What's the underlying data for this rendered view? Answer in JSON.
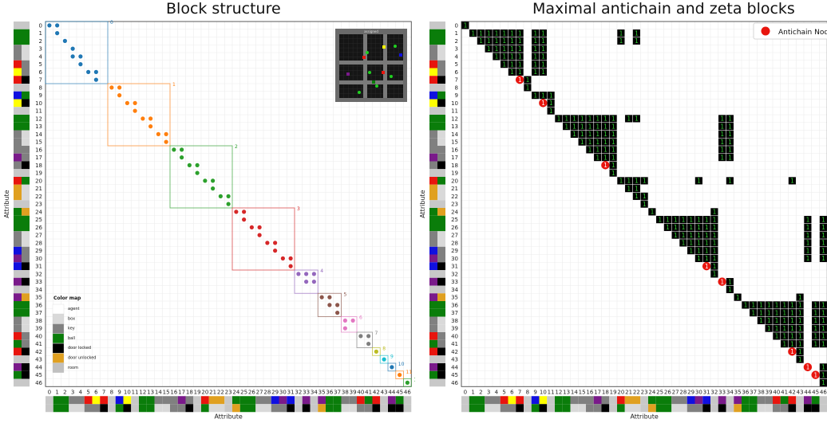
{
  "titles": {
    "left": "Block structure",
    "right": "Maximal antichain and zeta blocks"
  },
  "axis_label": "Attribute",
  "legend": {
    "label": "Antichain Node",
    "color": "#e8150e"
  },
  "minimap_caption": "assigned",
  "color_map": {
    "title": "Color map",
    "items": [
      {
        "label": "agent",
        "color": "#ffffff"
      },
      {
        "label": "box",
        "color": "#d9d9d9"
      },
      {
        "label": "key",
        "color": "#808080"
      },
      {
        "label": "ball",
        "color": "#0a7d0a"
      },
      {
        "label": "door locked",
        "color": "#000000"
      },
      {
        "label": "door unlocked",
        "color": "#e0a020"
      },
      {
        "label": "room",
        "color": "#c0c0c0"
      }
    ]
  },
  "strip_rows": [
    [
      "#c8c8c8",
      "#c8c8c8"
    ],
    [
      "#0a7d0a",
      "#0a7d0a"
    ],
    [
      "#0a7d0a",
      "#0a7d0a"
    ],
    [
      "#808080",
      "#d9d9d9"
    ],
    [
      "#808080",
      "#d9d9d9"
    ],
    [
      "#e8150e",
      "#808080"
    ],
    [
      "#ffff00",
      "#808080"
    ],
    [
      "#e8150e",
      "#000000"
    ],
    [
      "#c8c8c8",
      "#c8c8c8"
    ],
    [
      "#1010e0",
      "#0a7d0a"
    ],
    [
      "#ffff00",
      "#000000"
    ],
    [
      "#c8c8c8",
      "#c8c8c8"
    ],
    [
      "#0a7d0a",
      "#0a7d0a"
    ],
    [
      "#0a7d0a",
      "#0a7d0a"
    ],
    [
      "#808080",
      "#d9d9d9"
    ],
    [
      "#808080",
      "#d9d9d9"
    ],
    [
      "#808080",
      "#808080"
    ],
    [
      "#7a1a8a",
      "#808080"
    ],
    [
      "#808080",
      "#000000"
    ],
    [
      "#c8c8c8",
      "#c8c8c8"
    ],
    [
      "#e8150e",
      "#0a7d0a"
    ],
    [
      "#e0a020",
      "#d9d9d9"
    ],
    [
      "#e0a020",
      "#d9d9d9"
    ],
    [
      "#c8c8c8",
      "#c8c8c8"
    ],
    [
      "#0a7d0a",
      "#e0a020"
    ],
    [
      "#0a7d0a",
      "#0a7d0a"
    ],
    [
      "#0a7d0a",
      "#0a7d0a"
    ],
    [
      "#808080",
      "#d9d9d9"
    ],
    [
      "#808080",
      "#d9d9d9"
    ],
    [
      "#1010e0",
      "#808080"
    ],
    [
      "#7a1a8a",
      "#808080"
    ],
    [
      "#1010e0",
      "#000000"
    ],
    [
      "#c8c8c8",
      "#c8c8c8"
    ],
    [
      "#7a1a8a",
      "#000000"
    ],
    [
      "#c8c8c8",
      "#c8c8c8"
    ],
    [
      "#7a1a8a",
      "#e0a020"
    ],
    [
      "#0a7d0a",
      "#0a7d0a"
    ],
    [
      "#0a7d0a",
      "#0a7d0a"
    ],
    [
      "#808080",
      "#d9d9d9"
    ],
    [
      "#808080",
      "#d9d9d9"
    ],
    [
      "#e8150e",
      "#808080"
    ],
    [
      "#0a7d0a",
      "#808080"
    ],
    [
      "#e8150e",
      "#000000"
    ],
    [
      "#c8c8c8",
      "#c8c8c8"
    ],
    [
      "#7a1a8a",
      "#000000"
    ],
    [
      "#0a7d0a",
      "#000000"
    ],
    [
      "#c8c8c8",
      "#c8c8c8"
    ]
  ],
  "chart_data": [
    {
      "type": "scatter",
      "title": "Block structure",
      "xlabel": "Attribute",
      "ylabel": "Attribute",
      "x_ticks": [
        "0",
        "1",
        "2",
        "3",
        "4",
        "5",
        "6",
        "7",
        "8",
        "9",
        "10",
        "11",
        "12",
        "13",
        "14",
        "15",
        "16",
        "17",
        "18",
        "19",
        "20",
        "21",
        "22",
        "23",
        "24",
        "25",
        "26",
        "27",
        "28",
        "29",
        "30",
        "31",
        "32",
        "33",
        "34",
        "35",
        "36",
        "37",
        "38",
        "39",
        "40",
        "41",
        "42",
        "43",
        "44",
        "45",
        "46"
      ],
      "y_ticks": [
        "0",
        "1",
        "2",
        "3",
        "4",
        "5",
        "6",
        "7",
        "8",
        "9",
        "10",
        "11",
        "12",
        "13",
        "14",
        "15",
        "16",
        "17",
        "18",
        "19",
        "20",
        "21",
        "22",
        "23",
        "24",
        "25",
        "26",
        "27",
        "28",
        "29",
        "30",
        "31",
        "32",
        "33",
        "34",
        "35",
        "36",
        "37",
        "38",
        "39",
        "40",
        "41",
        "42",
        "43",
        "44",
        "45",
        "46"
      ],
      "grid": true,
      "blocks": [
        {
          "label": "0",
          "start": 0,
          "end": 7,
          "color": "#1f77b4",
          "points": [
            [
              0,
              0
            ],
            [
              1,
              0
            ],
            [
              1,
              1
            ],
            [
              2,
              2
            ],
            [
              3,
              3
            ],
            [
              3,
              4
            ],
            [
              4,
              4
            ],
            [
              4,
              5
            ],
            [
              5,
              6
            ],
            [
              6,
              6
            ],
            [
              6,
              7
            ]
          ]
        },
        {
          "label": "1",
          "start": 8,
          "end": 15,
          "color": "#ff7f0e",
          "points": [
            [
              8,
              8
            ],
            [
              9,
              8
            ],
            [
              9,
              9
            ],
            [
              10,
              10
            ],
            [
              11,
              10
            ],
            [
              11,
              11
            ],
            [
              12,
              12
            ],
            [
              13,
              13
            ],
            [
              13,
              12
            ],
            [
              14,
              14
            ],
            [
              15,
              14
            ],
            [
              15,
              15
            ]
          ]
        },
        {
          "label": "2",
          "start": 16,
          "end": 23,
          "color": "#2ca02c",
          "points": [
            [
              16,
              16
            ],
            [
              17,
              16
            ],
            [
              17,
              17
            ],
            [
              18,
              18
            ],
            [
              19,
              18
            ],
            [
              19,
              19
            ],
            [
              20,
              20
            ],
            [
              21,
              20
            ],
            [
              21,
              21
            ],
            [
              22,
              22
            ],
            [
              23,
              22
            ],
            [
              23,
              23
            ]
          ]
        },
        {
          "label": "3",
          "start": 24,
          "end": 31,
          "color": "#d62728",
          "points": [
            [
              24,
              24
            ],
            [
              25,
              24
            ],
            [
              25,
              25
            ],
            [
              26,
              26
            ],
            [
              27,
              26
            ],
            [
              27,
              27
            ],
            [
              28,
              28
            ],
            [
              29,
              28
            ],
            [
              29,
              29
            ],
            [
              30,
              30
            ],
            [
              31,
              30
            ],
            [
              31,
              31
            ]
          ]
        },
        {
          "label": "4",
          "start": 32,
          "end": 34,
          "color": "#9467bd",
          "points": [
            [
              32,
              32
            ],
            [
              33,
              32
            ],
            [
              34,
              32
            ],
            [
              33,
              33
            ],
            [
              34,
              33
            ]
          ]
        },
        {
          "label": "5",
          "start": 35,
          "end": 37,
          "color": "#8c564b",
          "points": [
            [
              35,
              35
            ],
            [
              36,
              35
            ],
            [
              36,
              36
            ],
            [
              37,
              36
            ],
            [
              37,
              37
            ]
          ]
        },
        {
          "label": "6",
          "start": 38,
          "end": 39,
          "color": "#e377c2",
          "points": [
            [
              38,
              38
            ],
            [
              39,
              38
            ],
            [
              38,
              39
            ]
          ]
        },
        {
          "label": "7",
          "start": 40,
          "end": 41,
          "color": "#7f7f7f",
          "points": [
            [
              40,
              40
            ],
            [
              41,
              40
            ],
            [
              41,
              41
            ]
          ]
        },
        {
          "label": "8",
          "start": 42,
          "end": 42,
          "color": "#bcbd22",
          "points": [
            [
              42,
              42
            ]
          ]
        },
        {
          "label": "9",
          "start": 43,
          "end": 43,
          "color": "#17becf",
          "points": [
            [
              43,
              43
            ]
          ]
        },
        {
          "label": "10",
          "start": 44,
          "end": 44,
          "color": "#1f77b4",
          "points": [
            [
              44,
              44
            ]
          ]
        },
        {
          "label": "11",
          "start": 45,
          "end": 45,
          "color": "#ff7f0e",
          "points": [
            [
              45,
              45
            ]
          ]
        },
        {
          "label": "12",
          "start": 46,
          "end": 46,
          "color": "#2ca02c",
          "points": [
            [
              46,
              46
            ]
          ]
        }
      ]
    },
    {
      "type": "heatmap",
      "title": "Maximal antichain and zeta blocks",
      "xlabel": "Attribute",
      "ylabel": "Attribute",
      "x_ticks": [
        "0",
        "1",
        "2",
        "3",
        "4",
        "5",
        "6",
        "7",
        "8",
        "9",
        "10",
        "11",
        "12",
        "13",
        "14",
        "15",
        "16",
        "17",
        "18",
        "19",
        "20",
        "21",
        "22",
        "23",
        "24",
        "25",
        "26",
        "27",
        "28",
        "29",
        "30",
        "31",
        "32",
        "33",
        "34",
        "35",
        "36",
        "37",
        "38",
        "39",
        "40",
        "41",
        "42",
        "43",
        "44",
        "45",
        "46"
      ],
      "y_ticks": [
        "0",
        "1",
        "2",
        "3",
        "4",
        "5",
        "6",
        "7",
        "8",
        "9",
        "10",
        "11",
        "12",
        "13",
        "14",
        "15",
        "16",
        "17",
        "18",
        "19",
        "20",
        "21",
        "22",
        "23",
        "24",
        "25",
        "26",
        "27",
        "28",
        "29",
        "30",
        "31",
        "32",
        "33",
        "34",
        "35",
        "36",
        "37",
        "38",
        "39",
        "40",
        "41",
        "42",
        "43",
        "44",
        "45",
        "46"
      ],
      "cell_value": "1",
      "grid": true,
      "legend_location": "top-right",
      "antichain_nodes": [
        7,
        10,
        18,
        31,
        33,
        42,
        44,
        45
      ],
      "cells": [
        {
          "row": 0,
          "cols": [
            0
          ]
        },
        {
          "row": 1,
          "cols": [
            1,
            2,
            3,
            4,
            5,
            6,
            7,
            9,
            10,
            20,
            22
          ]
        },
        {
          "row": 2,
          "cols": [
            2,
            3,
            4,
            5,
            6,
            7,
            9,
            10,
            20,
            22
          ]
        },
        {
          "row": 3,
          "cols": [
            3,
            4,
            5,
            6,
            7,
            9,
            10
          ]
        },
        {
          "row": 4,
          "cols": [
            4,
            5,
            6,
            7,
            9,
            10
          ]
        },
        {
          "row": 5,
          "cols": [
            5,
            6,
            7,
            9,
            10
          ]
        },
        {
          "row": 6,
          "cols": [
            6,
            7,
            9,
            10
          ]
        },
        {
          "row": 7,
          "cols": [
            7,
            8
          ]
        },
        {
          "row": 8,
          "cols": [
            8
          ]
        },
        {
          "row": 9,
          "cols": [
            9,
            10,
            11
          ]
        },
        {
          "row": 10,
          "cols": [
            10,
            11
          ]
        },
        {
          "row": 11,
          "cols": [
            11
          ]
        },
        {
          "row": 12,
          "cols": [
            12,
            13,
            14,
            15,
            16,
            17,
            18,
            19,
            21,
            22,
            33,
            34
          ]
        },
        {
          "row": 13,
          "cols": [
            13,
            14,
            15,
            16,
            17,
            18,
            19,
            33,
            34
          ]
        },
        {
          "row": 14,
          "cols": [
            14,
            15,
            16,
            17,
            18,
            19,
            33,
            34
          ]
        },
        {
          "row": 15,
          "cols": [
            15,
            16,
            17,
            18,
            19,
            33,
            34
          ]
        },
        {
          "row": 16,
          "cols": [
            16,
            17,
            18,
            19,
            33,
            34
          ]
        },
        {
          "row": 17,
          "cols": [
            17,
            18,
            19,
            33,
            34
          ]
        },
        {
          "row": 18,
          "cols": [
            18,
            19
          ]
        },
        {
          "row": 19,
          "cols": [
            19
          ]
        },
        {
          "row": 20,
          "cols": [
            20,
            21,
            22,
            23,
            30,
            34,
            42
          ]
        },
        {
          "row": 21,
          "cols": [
            21,
            22
          ]
        },
        {
          "row": 22,
          "cols": [
            22,
            23
          ]
        },
        {
          "row": 23,
          "cols": [
            23
          ]
        },
        {
          "row": 24,
          "cols": [
            24,
            32
          ]
        },
        {
          "row": 25,
          "cols": [
            25,
            26,
            27,
            28,
            29,
            30,
            31,
            32,
            44,
            46
          ]
        },
        {
          "row": 26,
          "cols": [
            26,
            27,
            28,
            29,
            30,
            31,
            32,
            44,
            46
          ]
        },
        {
          "row": 27,
          "cols": [
            27,
            28,
            29,
            30,
            31,
            32,
            44,
            46
          ]
        },
        {
          "row": 28,
          "cols": [
            28,
            29,
            30,
            31,
            32,
            44,
            46
          ]
        },
        {
          "row": 29,
          "cols": [
            29,
            30,
            31,
            32,
            44,
            46
          ]
        },
        {
          "row": 30,
          "cols": [
            30,
            31,
            32,
            44,
            46
          ]
        },
        {
          "row": 31,
          "cols": [
            31,
            32
          ]
        },
        {
          "row": 32,
          "cols": [
            32
          ]
        },
        {
          "row": 33,
          "cols": [
            33,
            34
          ]
        },
        {
          "row": 34,
          "cols": [
            34
          ]
        },
        {
          "row": 35,
          "cols": [
            35,
            43
          ]
        },
        {
          "row": 36,
          "cols": [
            36,
            37,
            38,
            39,
            40,
            41,
            42,
            43,
            45,
            46
          ]
        },
        {
          "row": 37,
          "cols": [
            37,
            38,
            39,
            40,
            41,
            42,
            43,
            45,
            46
          ]
        },
        {
          "row": 38,
          "cols": [
            38,
            39,
            40,
            41,
            42,
            43,
            45,
            46
          ]
        },
        {
          "row": 39,
          "cols": [
            39,
            40,
            41,
            42,
            43,
            45,
            46
          ]
        },
        {
          "row": 40,
          "cols": [
            40,
            41,
            42,
            43,
            45,
            46
          ]
        },
        {
          "row": 41,
          "cols": [
            41,
            42,
            43,
            45,
            46
          ]
        },
        {
          "row": 42,
          "cols": [
            42,
            43
          ]
        },
        {
          "row": 43,
          "cols": [
            43
          ]
        },
        {
          "row": 44,
          "cols": [
            44,
            46
          ]
        },
        {
          "row": 45,
          "cols": [
            45,
            46
          ]
        },
        {
          "row": 46,
          "cols": [
            46
          ]
        }
      ]
    }
  ]
}
